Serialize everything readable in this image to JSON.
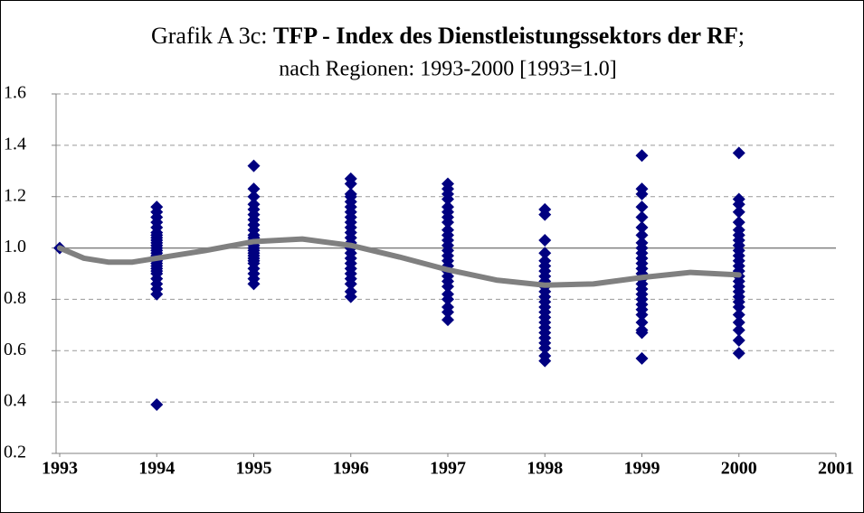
{
  "chart_data": {
    "type": "scatter",
    "title": {
      "prefix": "Grafik A 3c:",
      "main": "TFP - Index des Dienstleistungssektors der RF",
      "suffix": ";"
    },
    "subtitle": "nach Regionen: 1993-2000 [1993=1.0]",
    "xlim": [
      1993,
      2001
    ],
    "xticks": [
      1993,
      1994,
      1995,
      1996,
      1997,
      1998,
      1999,
      2000,
      2001
    ],
    "ylim": [
      0.2,
      1.6
    ],
    "yticks": [
      0.2,
      0.4,
      0.6,
      0.8,
      {
        "value": 1,
        "label": "1.0"
      },
      1.2,
      1.4,
      1.6
    ],
    "grid": true,
    "reference_line": 1,
    "marker_color": "#000080",
    "series": [
      {
        "x": [
          1993
        ],
        "values": [
          1.0
        ]
      },
      {
        "x": [
          1994,
          1994,
          1994,
          1994,
          1994,
          1994,
          1994,
          1994,
          1994,
          1994,
          1994,
          1994,
          1994,
          1994,
          1994,
          1994,
          1994,
          1994,
          1994,
          1994,
          1994,
          1994,
          1994,
          1994,
          1994,
          1994,
          1994
        ],
        "values": [
          1.16,
          1.14,
          1.12,
          1.1,
          1.08,
          1.06,
          1.05,
          1.04,
          1.03,
          1.02,
          1.01,
          1.0,
          0.99,
          0.98,
          0.97,
          0.96,
          0.95,
          0.94,
          0.93,
          0.92,
          0.91,
          0.9,
          0.88,
          0.86,
          0.84,
          0.82,
          0.39
        ]
      },
      {
        "x": [
          1995,
          1995,
          1995,
          1995,
          1995,
          1995,
          1995,
          1995,
          1995,
          1995,
          1995,
          1995,
          1995,
          1995,
          1995,
          1995,
          1995,
          1995,
          1995,
          1995,
          1995,
          1995,
          1995,
          1995,
          1995
        ],
        "values": [
          1.32,
          1.23,
          1.2,
          1.17,
          1.15,
          1.13,
          1.11,
          1.09,
          1.07,
          1.05,
          1.04,
          1.03,
          1.02,
          1.01,
          1.0,
          0.99,
          0.98,
          0.97,
          0.96,
          0.95,
          0.94,
          0.92,
          0.9,
          0.88,
          0.86
        ]
      },
      {
        "x": [
          1996,
          1996,
          1996,
          1996,
          1996,
          1996,
          1996,
          1996,
          1996,
          1996,
          1996,
          1996,
          1996,
          1996,
          1996,
          1996,
          1996,
          1996,
          1996,
          1996,
          1996,
          1996,
          1996
        ],
        "values": [
          1.27,
          1.25,
          1.21,
          1.2,
          1.18,
          1.16,
          1.14,
          1.12,
          1.1,
          1.08,
          1.06,
          1.04,
          1.02,
          1.0,
          0.98,
          0.96,
          0.94,
          0.92,
          0.9,
          0.88,
          0.86,
          0.83,
          0.81
        ]
      },
      {
        "x": [
          1997,
          1997,
          1997,
          1997,
          1997,
          1997,
          1997,
          1997,
          1997,
          1997,
          1997,
          1997,
          1997,
          1997,
          1997,
          1997,
          1997,
          1997,
          1997,
          1997,
          1997,
          1997,
          1997,
          1997,
          1997
        ],
        "values": [
          1.25,
          1.23,
          1.21,
          1.19,
          1.16,
          1.14,
          1.12,
          1.1,
          1.07,
          1.05,
          1.03,
          1.01,
          0.99,
          0.97,
          0.95,
          0.93,
          0.91,
          0.89,
          0.87,
          0.85,
          0.82,
          0.8,
          0.77,
          0.75,
          0.72
        ]
      },
      {
        "x": [
          1998,
          1998,
          1998,
          1998,
          1998,
          1998,
          1998,
          1998,
          1998,
          1998,
          1998,
          1998,
          1998,
          1998,
          1998,
          1998,
          1998,
          1998,
          1998,
          1998,
          1998,
          1998,
          1998,
          1998
        ],
        "values": [
          1.15,
          1.13,
          1.03,
          0.98,
          0.95,
          0.93,
          0.91,
          0.89,
          0.87,
          0.85,
          0.83,
          0.81,
          0.79,
          0.77,
          0.75,
          0.73,
          0.71,
          0.69,
          0.67,
          0.65,
          0.63,
          0.61,
          0.58,
          0.56
        ]
      },
      {
        "x": [
          1999,
          1999,
          1999,
          1999,
          1999,
          1999,
          1999,
          1999,
          1999,
          1999,
          1999,
          1999,
          1999,
          1999,
          1999,
          1999,
          1999,
          1999,
          1999,
          1999,
          1999,
          1999,
          1999,
          1999,
          1999,
          1999
        ],
        "values": [
          1.36,
          1.23,
          1.21,
          1.16,
          1.12,
          1.08,
          1.05,
          1.02,
          1.0,
          0.98,
          0.96,
          0.94,
          0.92,
          0.9,
          0.88,
          0.86,
          0.84,
          0.82,
          0.8,
          0.78,
          0.76,
          0.74,
          0.71,
          0.68,
          0.67,
          0.57
        ]
      },
      {
        "x": [
          2000,
          2000,
          2000,
          2000,
          2000,
          2000,
          2000,
          2000,
          2000,
          2000,
          2000,
          2000,
          2000,
          2000,
          2000,
          2000,
          2000,
          2000,
          2000,
          2000,
          2000,
          2000,
          2000,
          2000,
          2000,
          2000
        ],
        "values": [
          1.37,
          1.19,
          1.17,
          1.14,
          1.1,
          1.07,
          1.05,
          1.03,
          1.01,
          0.99,
          0.97,
          0.95,
          0.93,
          0.91,
          0.89,
          0.87,
          0.85,
          0.83,
          0.81,
          0.79,
          0.77,
          0.74,
          0.71,
          0.68,
          0.64,
          0.59
        ]
      }
    ],
    "trend": {
      "color": "#808080",
      "x": [
        1993,
        1993.25,
        1993.5,
        1993.75,
        1994,
        1994.5,
        1995,
        1995.5,
        1996,
        1996.5,
        1997,
        1997.5,
        1998,
        1998.5,
        1999,
        1999.5,
        2000
      ],
      "values": [
        1.0,
        0.96,
        0.945,
        0.945,
        0.96,
        0.99,
        1.025,
        1.035,
        1.01,
        0.965,
        0.915,
        0.875,
        0.855,
        0.86,
        0.885,
        0.905,
        0.895
      ]
    }
  }
}
